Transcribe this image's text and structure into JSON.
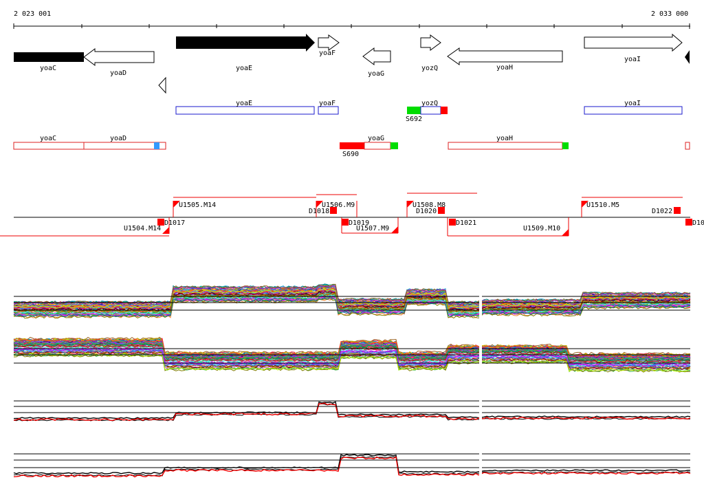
{
  "coords": {
    "start": "2 023 001",
    "end": "2 033 000"
  },
  "genes_track": [
    {
      "name": "yoaC",
      "filled": true,
      "dir": "right"
    },
    {
      "name": "yoaD",
      "filled": false,
      "dir": "left"
    },
    {
      "name": "yoaE",
      "filled": true,
      "dir": "right"
    },
    {
      "name": "yoaF",
      "filled": false,
      "dir": "right"
    },
    {
      "name": "yoaG",
      "filled": false,
      "dir": "left"
    },
    {
      "name": "yozQ",
      "filled": false,
      "dir": "right"
    },
    {
      "name": "yoaH",
      "filled": false,
      "dir": "left"
    },
    {
      "name": "yoaI",
      "filled": false,
      "dir": "right"
    }
  ],
  "plus_strand_track": [
    {
      "name": "yoaE"
    },
    {
      "name": "yoaF"
    },
    {
      "name": "yozQ",
      "site": "S692"
    },
    {
      "name": "yoaI"
    }
  ],
  "minus_strand_track": [
    {
      "name": "yoaC"
    },
    {
      "name": "yoaD"
    },
    {
      "name": "yoaG",
      "site": "S690"
    },
    {
      "name": "yoaH"
    }
  ],
  "segments_upper": [
    "U1505.M14",
    "U1506.M9",
    "U1508.M8",
    "U1510.M5"
  ],
  "segments_lower": [
    "U1504.M14",
    "U1507.M9",
    "U1509.M10"
  ],
  "down_markers": [
    "D1017",
    "D1018",
    "D1019",
    "D1020",
    "D1021",
    "D1022",
    "D10"
  ],
  "colors": {
    "gene_fill": "#000000",
    "plus_box": "#1a1acc",
    "minus_box": "#dd2222",
    "start_green": "#00dd00",
    "marker_red": "#ff0000",
    "marker_blue": "#3399ff",
    "line_red": "#ee0000"
  },
  "expression_panels": [
    {
      "name": "panel-plus-multi"
    },
    {
      "name": "panel-minus-multi"
    },
    {
      "name": "panel-plus-avg"
    },
    {
      "name": "panel-minus-avg"
    }
  ]
}
